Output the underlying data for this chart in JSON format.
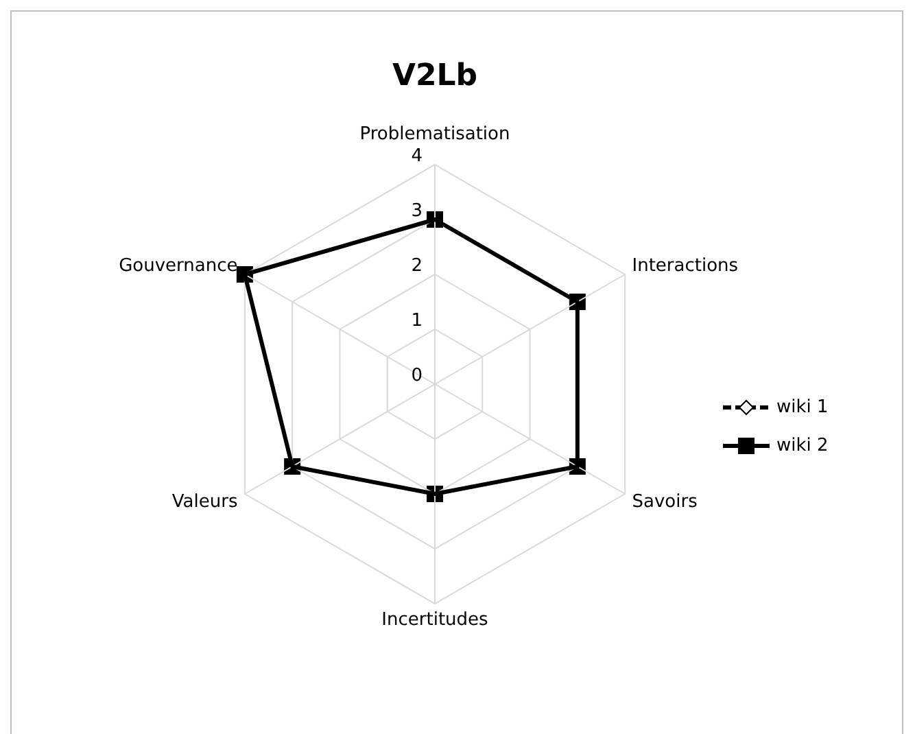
{
  "chart_data": {
    "type": "radar",
    "title": "V2Lb",
    "categories": [
      "Problematisation",
      "Interactions",
      "Savoirs",
      "Incertitudes",
      "Valeurs",
      "Gouvernance"
    ],
    "ylim": [
      0,
      4
    ],
    "yticks": [
      0,
      1,
      2,
      3,
      4
    ],
    "grid": true,
    "legend": "right",
    "series": [
      {
        "name": "wiki 1",
        "color": "#000000",
        "values": [
          null,
          null,
          null,
          null,
          null,
          null
        ],
        "marker": "diamond",
        "line_style": "dashed"
      },
      {
        "name": "wiki 2",
        "color": "#000000",
        "values": [
          3,
          3,
          3,
          2,
          3,
          4
        ],
        "marker": "square",
        "line_style": "solid"
      }
    ]
  }
}
